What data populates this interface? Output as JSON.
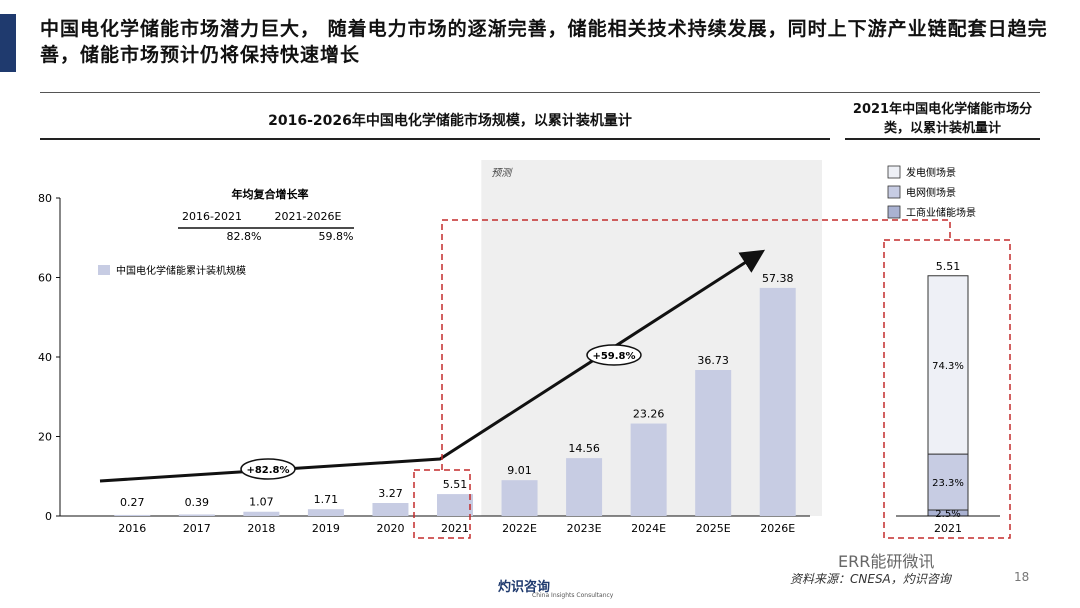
{
  "header": {
    "headline": "中国电化学储能市场潜力巨大， 随着电力市场的逐渐完善，储能相关技术持续发展，同时上下游产业链配套日趋完善，储能市场预计仍将保持快速增长"
  },
  "footer": {
    "source": "资料来源：CNESA，灼识咨询",
    "page_number": "18",
    "logo_text": "灼识咨询",
    "logo_subtext": "China Insights Consultancy",
    "wechat_label": "ERR能研微讯"
  },
  "colors": {
    "accent": "#1f3a6e",
    "bar": "#c7cce3",
    "forecast_bg": "#efefef",
    "highlight": "#c42b2b"
  },
  "chart_data": [
    {
      "type": "bar",
      "title": "2016-2026年中国电化学储能市场规模，以累计装机量计",
      "legend": [
        "中国电化学储能累计装机规模"
      ],
      "legend_position": "top-left",
      "categories": [
        "2016",
        "2017",
        "2018",
        "2019",
        "2020",
        "2021",
        "2022E",
        "2023E",
        "2024E",
        "2025E",
        "2026E"
      ],
      "values": [
        0.27,
        0.39,
        1.07,
        1.71,
        3.27,
        5.51,
        9.01,
        14.56,
        23.26,
        36.73,
        57.38
      ],
      "value_labels": [
        "0.27",
        "0.39",
        "1.07",
        "1.71",
        "3.27",
        "5.51",
        "9.01",
        "14.56",
        "23.26",
        "36.73",
        "57.38"
      ],
      "ylim": [
        0,
        80
      ],
      "yticks": [
        "0",
        "20",
        "40",
        "60",
        "80"
      ],
      "forecast_label": "预测",
      "cagr_table": {
        "title": "年均复合增长率",
        "headers": [
          "2016-2021",
          "2021-2026E"
        ],
        "values": [
          "82.8%",
          "59.8%"
        ]
      },
      "cagr_arrows": [
        "+82.8%",
        "+59.8%"
      ]
    },
    {
      "type": "bar",
      "stacked": true,
      "title": "2021年中国电化学储能市场分类，以累计装机量计",
      "categories": [
        "2021"
      ],
      "total_label": "5.51",
      "legend": [
        "发电侧场景",
        "电网侧场景",
        "工商业储能场景"
      ],
      "legend_position": "top",
      "series": [
        {
          "name": "工商业储能场景",
          "value_pct": 2.5,
          "label": "2.5%"
        },
        {
          "name": "电网侧场景",
          "value_pct": 23.3,
          "label": "23.3%"
        },
        {
          "name": "发电侧场景",
          "value_pct": 74.3,
          "label": "74.3%"
        }
      ]
    }
  ]
}
